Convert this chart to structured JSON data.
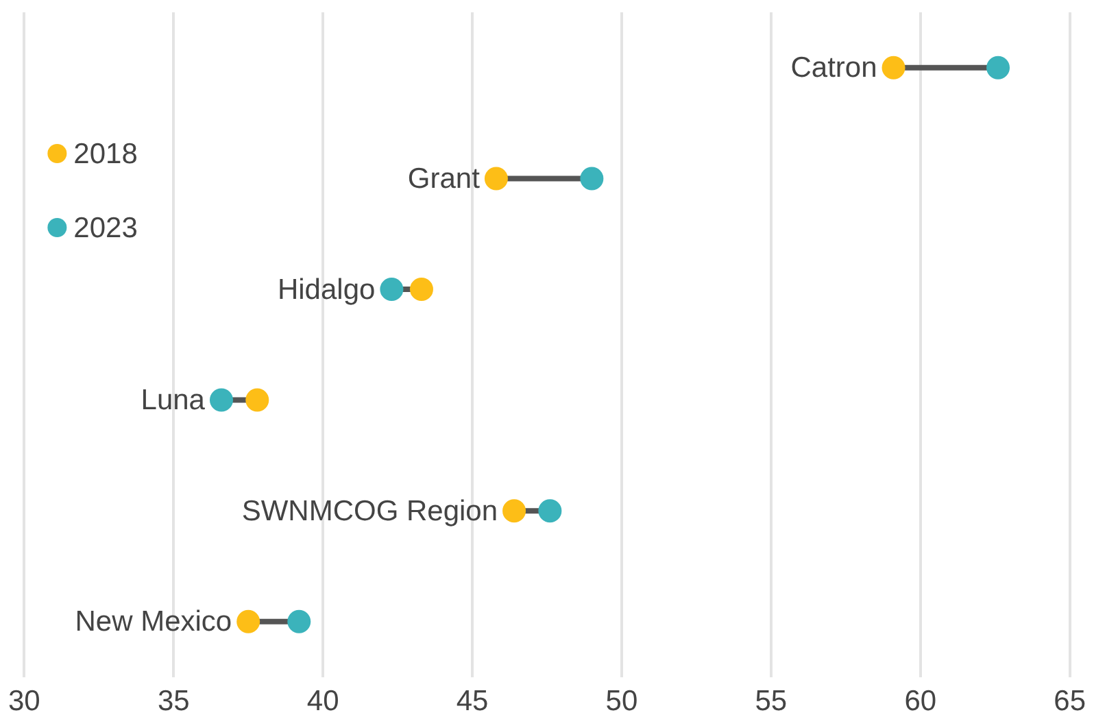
{
  "chart_data": {
    "type": "scatter",
    "orientation": "horizontal",
    "categories": [
      "Catron",
      "Grant",
      "Hidalgo",
      "Luna",
      "SWNMCOG Region",
      "New Mexico"
    ],
    "series": [
      {
        "name": "2018",
        "color": "#fdbe17",
        "values": [
          59.1,
          45.8,
          43.3,
          37.8,
          46.4,
          37.5
        ]
      },
      {
        "name": "2023",
        "color": "#3bb3bb",
        "values": [
          62.6,
          49.0,
          42.3,
          36.6,
          47.6,
          39.2
        ]
      }
    ],
    "xlim": [
      30,
      65
    ],
    "xticks": [
      30,
      35,
      40,
      45,
      50,
      55,
      60,
      65
    ],
    "grid": "x",
    "legend": "top left",
    "marker": "circle"
  }
}
